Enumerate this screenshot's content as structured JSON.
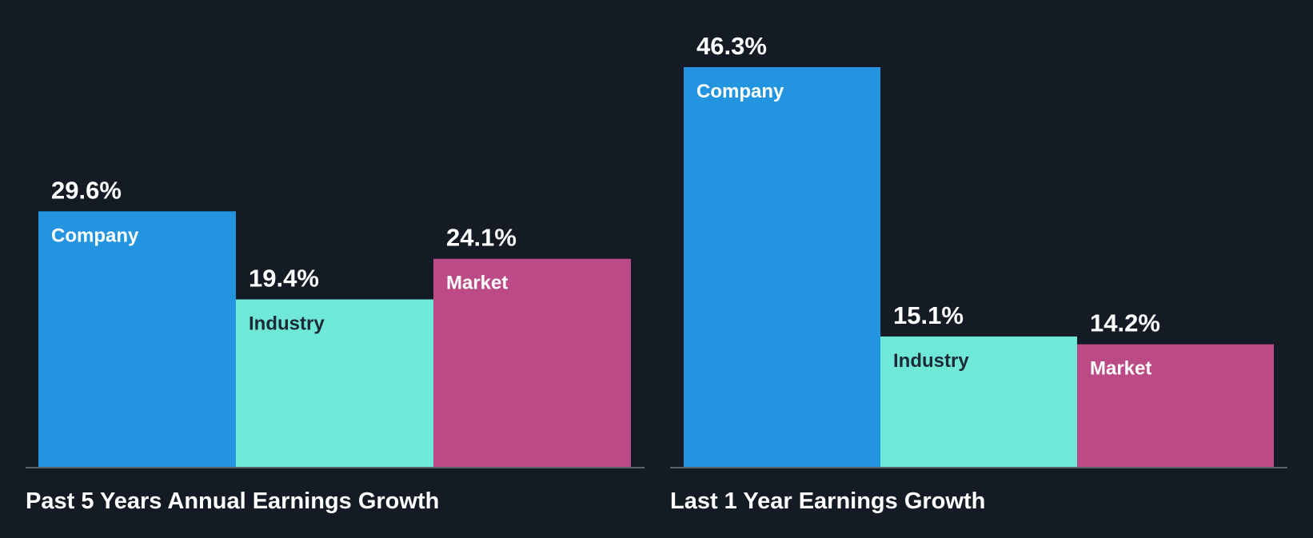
{
  "colors": {
    "background": "#151b24",
    "baseline": "#5a616b",
    "text": "#ffffff",
    "dark_label": "#1d2a36"
  },
  "chart_data": [
    {
      "type": "bar",
      "title": "Past 5 Years Annual Earnings Growth",
      "categories": [
        "Company",
        "Industry",
        "Market"
      ],
      "values": [
        29.6,
        19.4,
        24.1
      ],
      "value_labels": [
        "29.6%",
        "19.4%",
        "24.1%"
      ],
      "colors": [
        "#2394e0",
        "#6fe8d7",
        "#bb4a87"
      ],
      "label_colors": [
        "#ffffff",
        "#1d2a36",
        "#ffffff"
      ],
      "unit": "%",
      "ylim": [
        0,
        46.3
      ],
      "grid": false,
      "xlabel": "",
      "ylabel": ""
    },
    {
      "type": "bar",
      "title": "Last 1 Year Earnings Growth",
      "categories": [
        "Company",
        "Industry",
        "Market"
      ],
      "values": [
        46.3,
        15.1,
        14.2
      ],
      "value_labels": [
        "46.3%",
        "15.1%",
        "14.2%"
      ],
      "colors": [
        "#2394e0",
        "#6fe8d7",
        "#bb4a87"
      ],
      "label_colors": [
        "#ffffff",
        "#1d2a36",
        "#ffffff"
      ],
      "unit": "%",
      "ylim": [
        0,
        46.3
      ],
      "grid": false,
      "xlabel": "",
      "ylabel": ""
    }
  ]
}
